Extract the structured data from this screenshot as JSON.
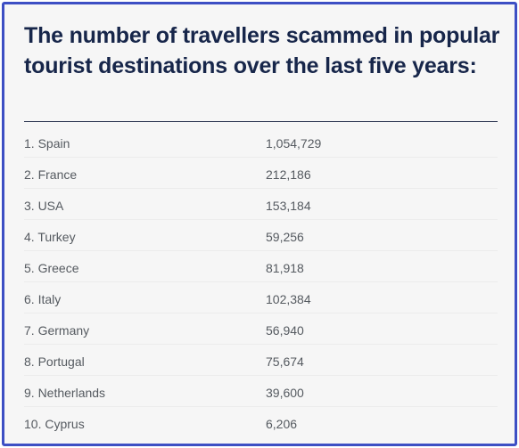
{
  "title": "The number of travellers scammed in popular tourist destinations over the last five years:",
  "table": {
    "rows": [
      [
        "1. Spain",
        "1,054,729"
      ],
      [
        "2. France",
        "212,186"
      ],
      [
        "3. USA",
        "153,184"
      ],
      [
        "4. Turkey",
        "59,256"
      ],
      [
        "5. Greece",
        "81,918"
      ],
      [
        "6. Italy",
        "102,384"
      ],
      [
        "7. Germany",
        "56,940"
      ],
      [
        "8. Portugal",
        "75,674"
      ],
      [
        "9. Netherlands",
        "39,600"
      ],
      [
        "10. Cyprus",
        "6,206"
      ]
    ]
  }
}
